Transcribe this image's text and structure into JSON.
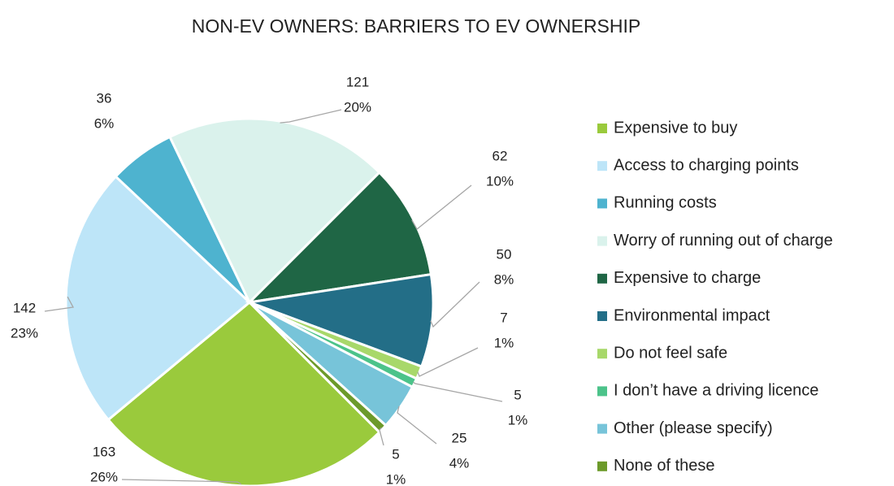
{
  "chart_data": {
    "type": "pie",
    "title": "NON-EV OWNERS: BARRIERS TO EV OWNERSHIP",
    "categories": [
      "Expensive to buy",
      "Access to charging points",
      "Running costs",
      "Worry of running out of charge",
      "Expensive to charge",
      "Environmental impact",
      "Do not feel safe",
      "I don’t have a driving licence",
      "Other (please specify)",
      "None of these"
    ],
    "values": [
      163,
      142,
      36,
      121,
      62,
      50,
      7,
      5,
      25,
      5
    ],
    "percent_labels": [
      "26%",
      "23%",
      "6%",
      "20%",
      "10%",
      "8%",
      "1%",
      "1%",
      "4%",
      "1%"
    ],
    "colors": [
      "#9aca3c",
      "#bde5f8",
      "#4eb3cf",
      "#daf2ec",
      "#1f6645",
      "#236e87",
      "#a8d86a",
      "#4cc38a",
      "#77c4d9",
      "#6c9a2a"
    ],
    "legend": "right"
  }
}
